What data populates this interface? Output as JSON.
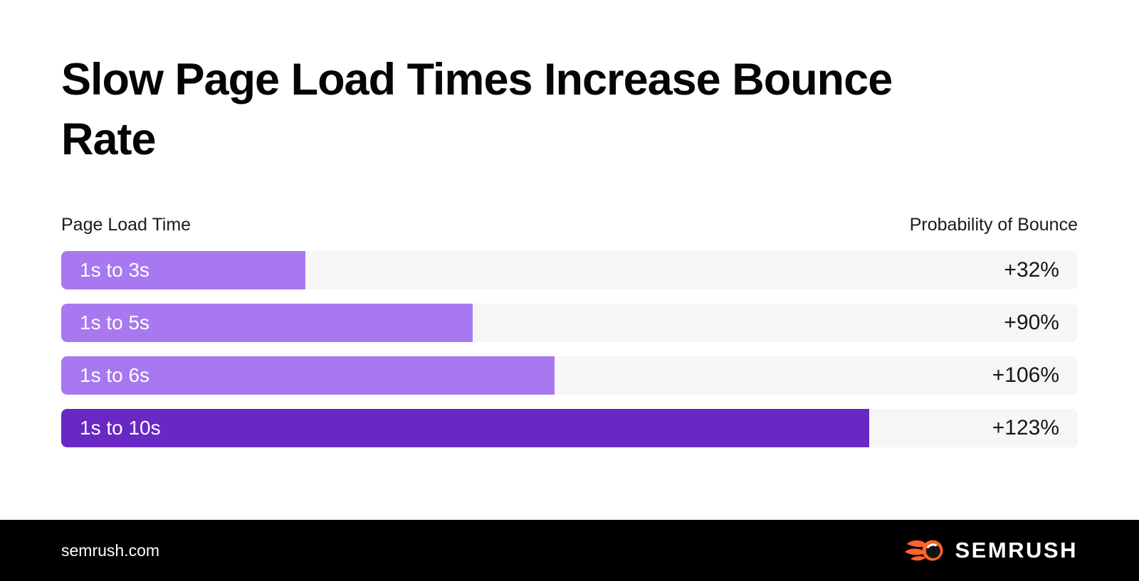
{
  "page": {
    "title": "Slow Page Load Times Increase Bounce Rate"
  },
  "chart": {
    "left_header": "Page Load Time",
    "right_header": "Probability of Bounce"
  },
  "chart_data": {
    "type": "bar",
    "orientation": "horizontal",
    "title": "Slow Page Load Times Increase Bounce Rate",
    "categories": [
      "1s to 3s",
      "1s to 5s",
      "1s to 6s",
      "1s to 10s"
    ],
    "values": [
      32,
      90,
      106,
      123
    ],
    "value_labels": [
      "+32%",
      "+90%",
      "+106%",
      "+123%"
    ],
    "xlabel": "Page Load Time",
    "ylabel": "Probability of Bounce",
    "grid": false,
    "legend": false,
    "bars": [
      {
        "label": "1s to 3s",
        "value": 32,
        "value_label": "+32%",
        "fill_percent": 24,
        "color": "#a778f0"
      },
      {
        "label": "1s to 5s",
        "value": 90,
        "value_label": "+90%",
        "fill_percent": 40.5,
        "color": "#a778f0"
      },
      {
        "label": "1s to 6s",
        "value": 106,
        "value_label": "+106%",
        "fill_percent": 48.5,
        "color": "#a778f0"
      },
      {
        "label": "1s to 10s",
        "value": 123,
        "value_label": "+123%",
        "fill_percent": 79.5,
        "color": "#6928c4"
      }
    ],
    "colors": {
      "bar_light": "#a778f0",
      "bar_dark": "#6928c4",
      "track": "#f6f6f6",
      "value_text": "#161616"
    }
  },
  "footer": {
    "website": "semrush.com",
    "logo_text": "SEMRUSH",
    "logo_color": "#ff642d"
  }
}
